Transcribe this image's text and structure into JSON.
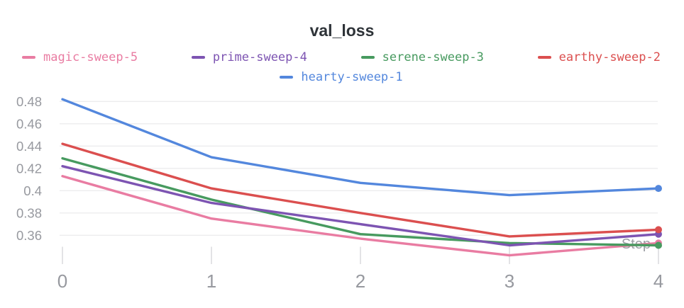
{
  "header": {
    "title": "val_loss"
  },
  "legend": {
    "items": [
      {
        "label": "magic-sweep-5",
        "color": "#E97CA2"
      },
      {
        "label": "prime-sweep-4",
        "color": "#7D54B2"
      },
      {
        "label": "serene-sweep-3",
        "color": "#479A5F"
      },
      {
        "label": "earthy-sweep-2",
        "color": "#DB4F4F"
      },
      {
        "label": "hearty-sweep-1",
        "color": "#5387DD"
      }
    ]
  },
  "axes": {
    "x": {
      "label": "Step",
      "ticks": [
        {
          "label": "0",
          "value": 0
        },
        {
          "label": "1",
          "value": 1
        },
        {
          "label": "2",
          "value": 2
        },
        {
          "label": "3",
          "value": 3
        },
        {
          "label": "4",
          "value": 4
        }
      ]
    },
    "y": {
      "ticks": [
        {
          "label": "0.48",
          "value": 0.48
        },
        {
          "label": "0.46",
          "value": 0.46
        },
        {
          "label": "0.44",
          "value": 0.44
        },
        {
          "label": "0.42",
          "value": 0.42
        },
        {
          "label": "0.4",
          "value": 0.4
        },
        {
          "label": "0.38",
          "value": 0.38
        },
        {
          "label": "0.36",
          "value": 0.36
        }
      ]
    }
  },
  "chart_data": {
    "type": "line",
    "title": "val_loss",
    "xlabel": "Step",
    "x": [
      0,
      1,
      2,
      3,
      4
    ],
    "series": [
      {
        "name": "magic-sweep-5",
        "color": "#E97CA2",
        "values": [
          0.413,
          0.375,
          0.357,
          0.342,
          0.353
        ]
      },
      {
        "name": "prime-sweep-4",
        "color": "#7D54B2",
        "values": [
          0.422,
          0.389,
          0.37,
          0.351,
          0.361
        ]
      },
      {
        "name": "serene-sweep-3",
        "color": "#479A5F",
        "values": [
          0.429,
          0.392,
          0.361,
          0.353,
          0.351
        ]
      },
      {
        "name": "earthy-sweep-2",
        "color": "#DB4F4F",
        "values": [
          0.442,
          0.402,
          0.38,
          0.359,
          0.365
        ]
      },
      {
        "name": "hearty-sweep-1",
        "color": "#5387DD",
        "values": [
          0.482,
          0.43,
          0.407,
          0.396,
          0.402
        ]
      }
    ],
    "z_order": [
      "hearty-sweep-1",
      "magic-sweep-5",
      "serene-sweep-3",
      "prime-sweep-4",
      "earthy-sweep-2"
    ],
    "xlim": [
      0,
      4
    ],
    "ylim": [
      0.34,
      0.492
    ],
    "grid": "horizontal",
    "legend_position": "top",
    "end_markers": true
  },
  "colors": {
    "background": "#ffffff",
    "grid": "#ececee",
    "tick": "#e3e3e6",
    "axis_text": "#97999F",
    "step_label_text": "#9B9DA3",
    "title_text": "#2E3338"
  }
}
